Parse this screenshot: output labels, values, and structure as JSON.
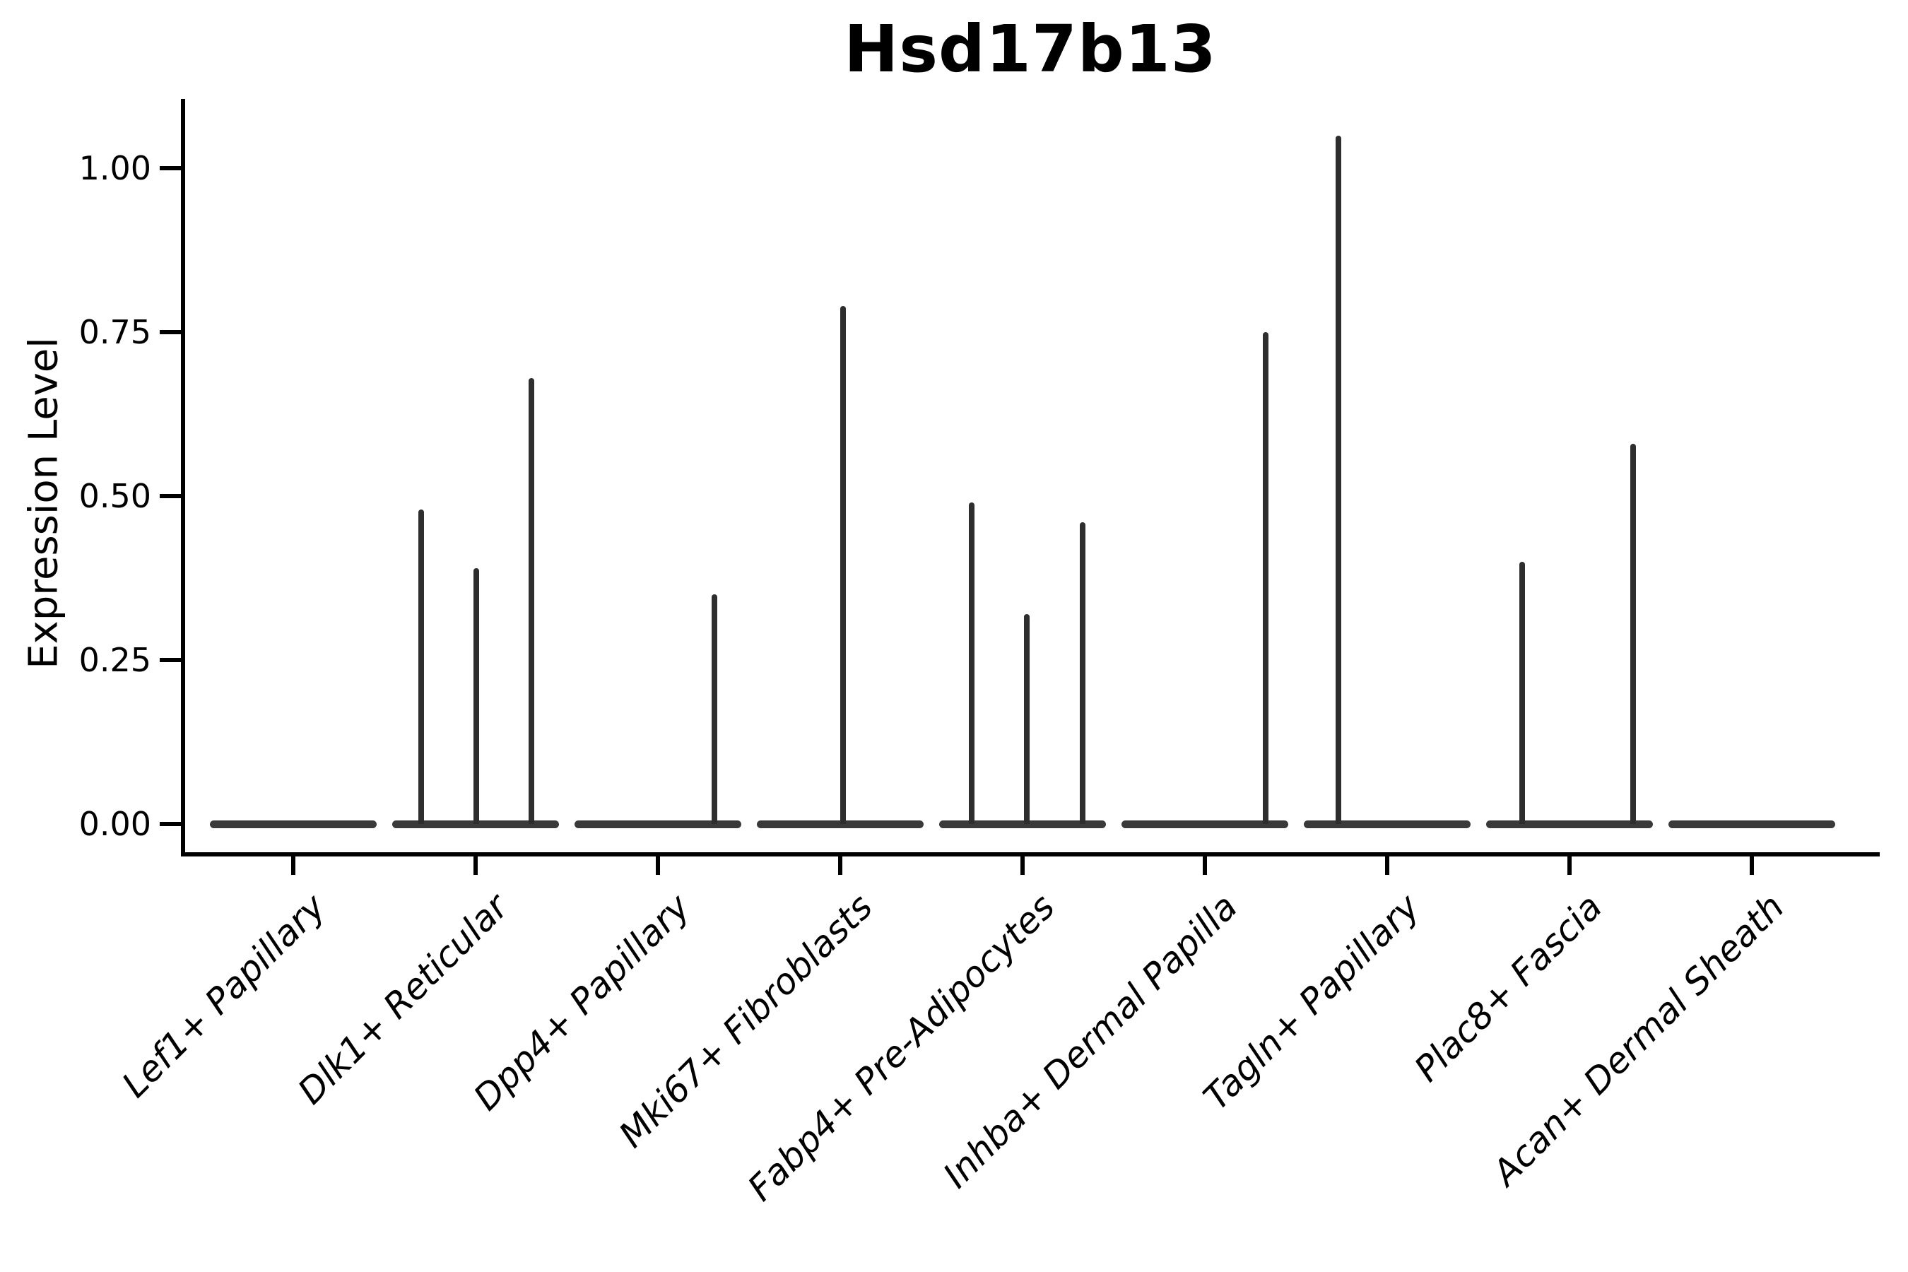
{
  "chart_data": {
    "type": "violin",
    "title": "Hsd17b13",
    "ylabel": "Expression Level",
    "xlabel": "",
    "grid": false,
    "legend": "none",
    "ylim": [
      -0.05,
      1.11
    ],
    "ytick_labels": [
      "0.00",
      "0.25",
      "0.50",
      "0.75",
      "1.00"
    ],
    "categories": [
      "Lef1+ Papillary",
      "Dlk1+ Reticular",
      "Dpp4+ Papillary",
      "Mki67+ Fibroblasts",
      "Fabp4+ Pre-Adipocytes",
      "Inhba+ Dermal Papilla",
      "Tagln+ Papillary",
      "Plac8+ Fascia",
      "Acan+ Dermal Sheath"
    ],
    "violins": [
      {
        "category": "Lef1+ Papillary",
        "baseline": 0.0,
        "spikes": []
      },
      {
        "category": "Dlk1+ Reticular",
        "baseline": 0.0,
        "spikes": [
          {
            "dx": -77,
            "value": 0.48
          },
          {
            "dx": 1,
            "value": 0.39
          },
          {
            "dx": 79,
            "value": 0.68
          }
        ]
      },
      {
        "category": "Dpp4+ Papillary",
        "baseline": 0.0,
        "spikes": [
          {
            "dx": 80,
            "value": 0.35
          }
        ]
      },
      {
        "category": "Mki67+ Fibroblasts",
        "baseline": 0.0,
        "spikes": [
          {
            "dx": 4,
            "value": 0.79
          }
        ]
      },
      {
        "category": "Fabp4+ Pre-Adipocytes",
        "baseline": 0.0,
        "spikes": [
          {
            "dx": -72,
            "value": 0.49
          },
          {
            "dx": 6,
            "value": 0.32
          },
          {
            "dx": 85,
            "value": 0.46
          }
        ]
      },
      {
        "category": "Inhba+ Dermal Papilla",
        "baseline": 0.0,
        "spikes": [
          {
            "dx": 86,
            "value": 0.75
          }
        ]
      },
      {
        "category": "Tagln+ Papillary",
        "baseline": 0.0,
        "spikes": [
          {
            "dx": -69,
            "value": 1.05
          }
        ]
      },
      {
        "category": "Plac8+ Fascia",
        "baseline": 0.0,
        "spikes": [
          {
            "dx": -67,
            "value": 0.4
          },
          {
            "dx": 90,
            "value": 0.58
          }
        ]
      },
      {
        "category": "Acan+ Dermal Sheath",
        "baseline": 0.0,
        "spikes": []
      }
    ],
    "colors": {
      "ink": "#000000",
      "violin_body": "#3a3a3a",
      "spike": "#2e2e2e",
      "background": "#ffffff"
    }
  }
}
